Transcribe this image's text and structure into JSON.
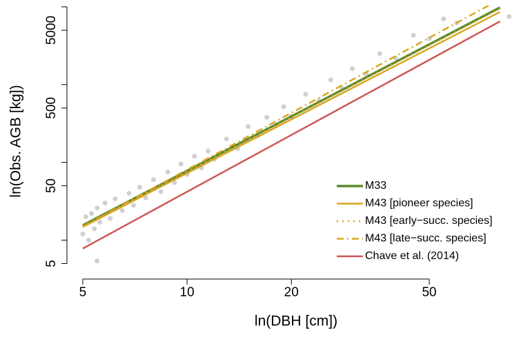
{
  "chart_data": {
    "type": "scatter",
    "log_x": true,
    "log_y": true,
    "x_label": "ln(DBH [cm])",
    "y_label": "ln(Obs. AGB [kg])",
    "xlim": [
      4.5,
      92
    ],
    "ylim": [
      3.5,
      10400
    ],
    "xticks": [
      5,
      10,
      20,
      50
    ],
    "yticks": [
      5,
      50,
      500,
      5000
    ],
    "yminorticks": [
      10,
      100,
      1000,
      10000
    ],
    "point_color": "#8a8a8a",
    "x": [
      5.0,
      5.1,
      5.2,
      5.3,
      5.4,
      5.5,
      5.5,
      5.6,
      5.8,
      6.0,
      6.2,
      6.5,
      6.8,
      7.0,
      7.3,
      7.6,
      8.0,
      8.4,
      8.8,
      9.2,
      9.6,
      10,
      10.5,
      11,
      11.5,
      12,
      13,
      14,
      15,
      16,
      17,
      18,
      19,
      20,
      22,
      24,
      26,
      28,
      30,
      33,
      36,
      40,
      45,
      50,
      55,
      60,
      85
    ],
    "values": [
      12,
      20,
      10,
      22,
      14,
      26,
      5.4,
      17,
      30,
      19,
      34,
      24,
      40,
      28,
      48,
      35,
      60,
      42,
      75,
      55,
      95,
      70,
      120,
      85,
      140,
      110,
      200,
      150,
      290,
      220,
      380,
      300,
      520,
      390,
      750,
      620,
      1150,
      900,
      1600,
      1350,
      2500,
      2200,
      4300,
      3900,
      7000,
      6200,
      7500
    ],
    "legend_position": "bottom-right",
    "series": [
      {
        "name": "M33",
        "color": "#5b8a2b",
        "style": "solid",
        "width": 3.5,
        "x": [
          5,
          80
        ],
        "values": [
          15.5,
          9800
        ]
      },
      {
        "name": "M43 [pioneer species]",
        "color": "#d9a520",
        "style": "solid",
        "width": 2.5,
        "x": [
          5,
          80
        ],
        "values": [
          14.8,
          8600
        ]
      },
      {
        "name": "M43 [early−succ. species]",
        "color": "#d9a520",
        "style": "dotted",
        "width": 2.5,
        "x": [
          5,
          80
        ],
        "values": [
          15.2,
          9500
        ]
      },
      {
        "name": "M43 [late−succ. species]",
        "color": "#d9a520",
        "style": "dashdot",
        "width": 2.5,
        "x": [
          5,
          80
        ],
        "values": [
          15,
          12500
        ]
      },
      {
        "name": "Chave et al. (2014)",
        "color": "#cc5555",
        "style": "solid",
        "width": 2.5,
        "x": [
          5,
          80
        ],
        "values": [
          7.8,
          6500
        ]
      }
    ]
  }
}
